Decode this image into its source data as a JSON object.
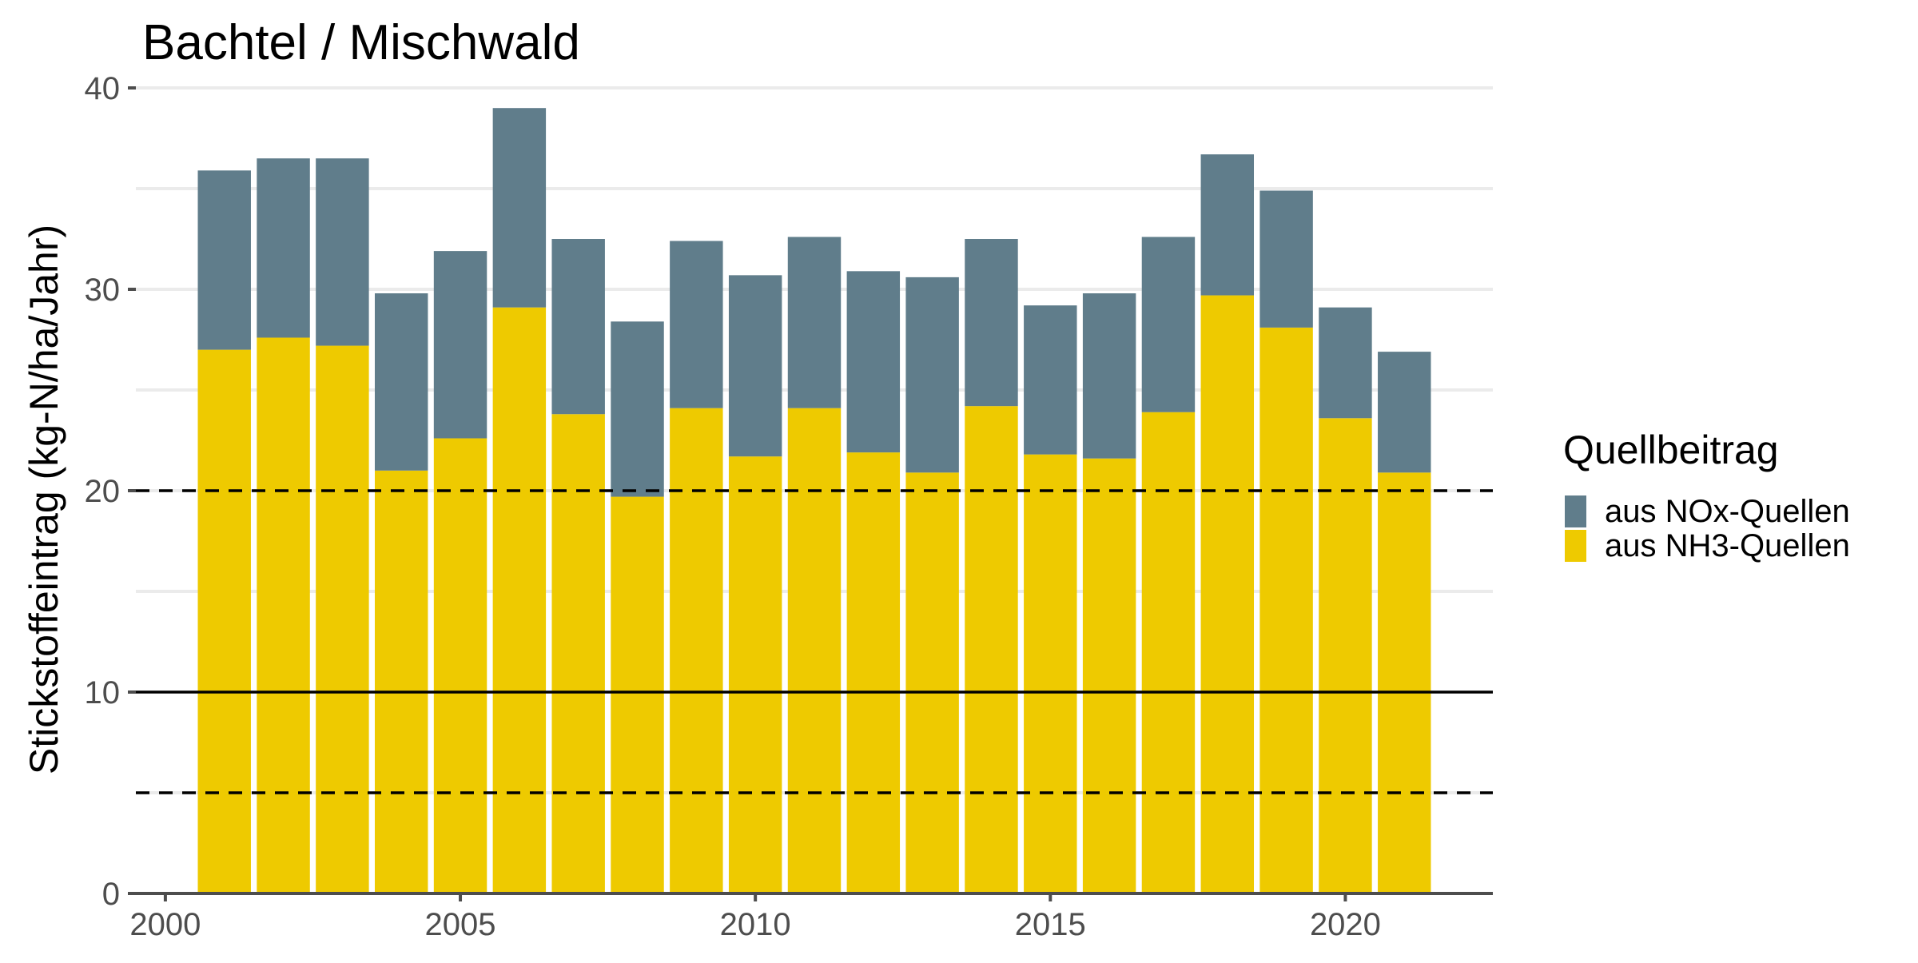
{
  "chart_data": {
    "type": "bar",
    "stacked": true,
    "title": "Bachtel / Mischwald",
    "xlabel": "",
    "ylabel": "Stickstoffeintrag (kg-N/ha/Jahr)",
    "xlim": [
      1999.5,
      2022.5
    ],
    "ylim": [
      0,
      40
    ],
    "x_ticks": [
      2000,
      2005,
      2010,
      2015,
      2020
    ],
    "y_ticks": [
      0,
      10,
      20,
      30,
      40
    ],
    "grid": true,
    "categories": [
      2001,
      2002,
      2003,
      2004,
      2005,
      2006,
      2007,
      2008,
      2009,
      2010,
      2011,
      2012,
      2013,
      2014,
      2015,
      2016,
      2017,
      2018,
      2019,
      2020,
      2021
    ],
    "series": [
      {
        "name": "aus NH3-Quellen",
        "color": "#EECA00",
        "values": [
          27.0,
          27.6,
          27.2,
          21.0,
          22.6,
          29.1,
          23.8,
          19.7,
          24.1,
          21.7,
          24.1,
          21.9,
          20.9,
          24.2,
          21.8,
          21.6,
          23.9,
          29.7,
          28.1,
          23.6,
          20.9
        ]
      },
      {
        "name": "aus NOx-Quellen",
        "color": "#607D8B",
        "values": [
          8.9,
          8.9,
          9.3,
          8.8,
          9.3,
          9.9,
          8.7,
          8.7,
          8.3,
          9.0,
          8.5,
          9.0,
          9.7,
          8.3,
          7.4,
          8.2,
          8.7,
          7.0,
          6.8,
          5.5,
          6.0
        ]
      }
    ],
    "reference_lines": [
      {
        "y": 20,
        "style": "dashed"
      },
      {
        "y": 10,
        "style": "solid"
      },
      {
        "y": 5,
        "style": "dashed"
      }
    ],
    "legend": {
      "title": "Quellbeitrag",
      "position": "right",
      "entries": [
        "aus NOx-Quellen",
        "aus NH3-Quellen"
      ]
    }
  }
}
